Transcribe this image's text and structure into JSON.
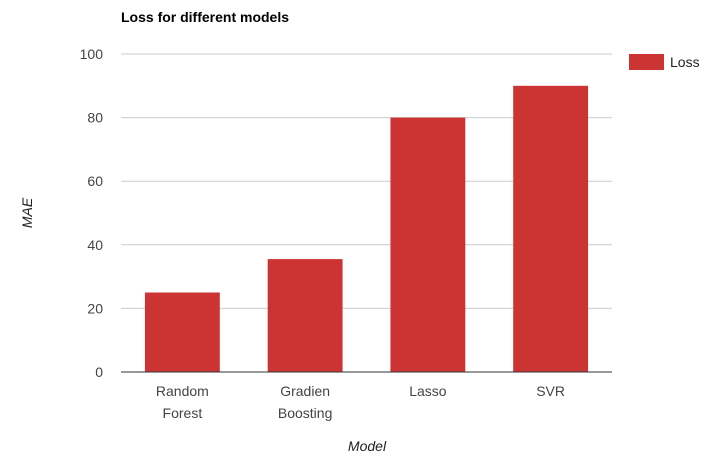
{
  "chart_data": {
    "type": "bar",
    "title": "Loss for different models",
    "xlabel": "Model",
    "ylabel": "MAE",
    "categories": [
      [
        "Random",
        "Forest"
      ],
      [
        "Gradien",
        "Boosting"
      ],
      [
        "Lasso"
      ],
      [
        "SVR"
      ]
    ],
    "series": [
      {
        "name": "Loss",
        "values": [
          25,
          35.5,
          80,
          90
        ],
        "color": "#cc3333"
      }
    ],
    "ylim": [
      0,
      100
    ],
    "yticks": [
      "0",
      "20",
      "40",
      "60",
      "80",
      "100"
    ],
    "grid": true,
    "legend_position": "right"
  }
}
